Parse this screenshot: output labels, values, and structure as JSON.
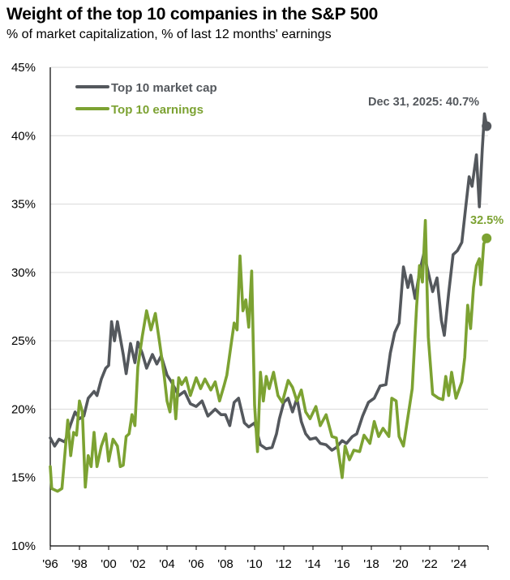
{
  "chart_data": {
    "type": "line",
    "title": "Weight of the top 10 companies in the S&P 500",
    "subtitle": "% of market capitalization, % of last 12 months' earnings",
    "xlabel": "",
    "ylabel": "",
    "xlim": [
      1996,
      2026
    ],
    "ylim": [
      10,
      45
    ],
    "grid": true,
    "legend_position": "top-left",
    "x_ticks": [
      {
        "value": 1996,
        "label": "'96"
      },
      {
        "value": 1998,
        "label": "'98"
      },
      {
        "value": 2000,
        "label": "'00"
      },
      {
        "value": 2002,
        "label": "'02"
      },
      {
        "value": 2004,
        "label": "'04"
      },
      {
        "value": 2006,
        "label": "'06"
      },
      {
        "value": 2008,
        "label": "'08"
      },
      {
        "value": 2010,
        "label": "'10"
      },
      {
        "value": 2012,
        "label": "'12"
      },
      {
        "value": 2014,
        "label": "'14"
      },
      {
        "value": 2016,
        "label": "'16"
      },
      {
        "value": 2018,
        "label": "'18"
      },
      {
        "value": 2020,
        "label": "'20"
      },
      {
        "value": 2022,
        "label": "'22"
      },
      {
        "value": 2024,
        "label": "'24"
      },
      {
        "value": 2026,
        "label": ""
      }
    ],
    "y_ticks": [
      {
        "value": 10,
        "label": "10%"
      },
      {
        "value": 15,
        "label": "15%"
      },
      {
        "value": 20,
        "label": "20%"
      },
      {
        "value": 25,
        "label": "25%"
      },
      {
        "value": 30,
        "label": "30%"
      },
      {
        "value": 35,
        "label": "35%"
      },
      {
        "value": 40,
        "label": "40%"
      },
      {
        "value": 45,
        "label": "45%"
      }
    ],
    "series": [
      {
        "name": "Top 10 market cap",
        "color": "#54585d",
        "end_label": "Dec 31, 2025: 40.7%",
        "end_value": 40.7,
        "points": [
          [
            1996.0,
            17.9
          ],
          [
            1996.3,
            17.3
          ],
          [
            1996.6,
            17.8
          ],
          [
            1997.0,
            17.6
          ],
          [
            1997.4,
            18.9
          ],
          [
            1997.7,
            19.8
          ],
          [
            1998.0,
            19.3
          ],
          [
            1998.3,
            19.5
          ],
          [
            1998.6,
            20.8
          ],
          [
            1999.0,
            21.3
          ],
          [
            1999.2,
            21.0
          ],
          [
            1999.5,
            22.2
          ],
          [
            1999.8,
            23.0
          ],
          [
            2000.0,
            23.2
          ],
          [
            2000.2,
            26.4
          ],
          [
            2000.4,
            25.0
          ],
          [
            2000.6,
            26.4
          ],
          [
            2000.8,
            25.2
          ],
          [
            2001.0,
            24.0
          ],
          [
            2001.2,
            22.6
          ],
          [
            2001.5,
            24.8
          ],
          [
            2001.8,
            23.4
          ],
          [
            2002.0,
            24.9
          ],
          [
            2002.3,
            24.1
          ],
          [
            2002.6,
            23.0
          ],
          [
            2003.0,
            24.0
          ],
          [
            2003.3,
            23.3
          ],
          [
            2003.6,
            23.9
          ],
          [
            2004.0,
            22.5
          ],
          [
            2004.3,
            22.0
          ],
          [
            2004.8,
            21.0
          ],
          [
            2005.2,
            21.3
          ],
          [
            2005.6,
            20.4
          ],
          [
            2006.0,
            20.2
          ],
          [
            2006.4,
            20.6
          ],
          [
            2006.8,
            19.5
          ],
          [
            2007.3,
            20.0
          ],
          [
            2007.7,
            19.6
          ],
          [
            2008.0,
            19.6
          ],
          [
            2008.3,
            18.8
          ],
          [
            2008.6,
            20.5
          ],
          [
            2008.9,
            20.8
          ],
          [
            2009.3,
            19.0
          ],
          [
            2009.6,
            18.7
          ],
          [
            2010.0,
            19.0
          ],
          [
            2010.4,
            17.4
          ],
          [
            2010.8,
            17.1
          ],
          [
            2011.2,
            17.2
          ],
          [
            2011.5,
            18.2
          ],
          [
            2011.7,
            19.3
          ],
          [
            2012.0,
            20.5
          ],
          [
            2012.3,
            20.8
          ],
          [
            2012.6,
            19.8
          ],
          [
            2012.9,
            20.8
          ],
          [
            2013.2,
            19.1
          ],
          [
            2013.5,
            18.2
          ],
          [
            2013.8,
            17.8
          ],
          [
            2014.2,
            17.9
          ],
          [
            2014.5,
            17.5
          ],
          [
            2014.9,
            17.4
          ],
          [
            2015.3,
            17.0
          ],
          [
            2015.6,
            17.2
          ],
          [
            2016.0,
            17.7
          ],
          [
            2016.3,
            17.5
          ],
          [
            2016.7,
            18.0
          ],
          [
            2017.0,
            18.2
          ],
          [
            2017.4,
            19.5
          ],
          [
            2017.8,
            20.5
          ],
          [
            2018.2,
            20.8
          ],
          [
            2018.6,
            21.7
          ],
          [
            2019.0,
            21.8
          ],
          [
            2019.3,
            24.1
          ],
          [
            2019.6,
            25.6
          ],
          [
            2019.9,
            26.3
          ],
          [
            2020.2,
            30.4
          ],
          [
            2020.5,
            28.9
          ],
          [
            2020.7,
            29.8
          ],
          [
            2021.0,
            28.1
          ],
          [
            2021.3,
            30.0
          ],
          [
            2021.6,
            31.4
          ],
          [
            2021.9,
            30.0
          ],
          [
            2022.2,
            28.6
          ],
          [
            2022.5,
            29.6
          ],
          [
            2022.8,
            26.5
          ],
          [
            2023.0,
            25.4
          ],
          [
            2023.3,
            28.5
          ],
          [
            2023.6,
            31.3
          ],
          [
            2023.9,
            31.6
          ],
          [
            2024.2,
            32.2
          ],
          [
            2024.5,
            35.1
          ],
          [
            2024.7,
            37.0
          ],
          [
            2024.9,
            36.3
          ],
          [
            2025.2,
            38.6
          ],
          [
            2025.4,
            34.8
          ],
          [
            2025.6,
            39.0
          ],
          [
            2025.75,
            41.6
          ],
          [
            2025.9,
            40.7
          ]
        ]
      },
      {
        "name": "Top 10 earnings",
        "color": "#7ca232",
        "end_label": "32.5%",
        "end_value": 32.5,
        "points": [
          [
            1996.0,
            15.8
          ],
          [
            1996.1,
            14.2
          ],
          [
            1996.5,
            14.0
          ],
          [
            1996.8,
            14.2
          ],
          [
            1997.0,
            16.7
          ],
          [
            1997.2,
            19.2
          ],
          [
            1997.4,
            16.6
          ],
          [
            1997.6,
            18.3
          ],
          [
            1997.8,
            18.1
          ],
          [
            1998.0,
            20.6
          ],
          [
            1998.2,
            19.8
          ],
          [
            1998.4,
            14.3
          ],
          [
            1998.6,
            16.6
          ],
          [
            1998.8,
            15.8
          ],
          [
            1999.0,
            18.3
          ],
          [
            1999.2,
            15.8
          ],
          [
            1999.5,
            17.3
          ],
          [
            1999.8,
            18.2
          ],
          [
            2000.0,
            16.2
          ],
          [
            2000.3,
            17.8
          ],
          [
            2000.6,
            17.3
          ],
          [
            2000.8,
            15.8
          ],
          [
            2001.0,
            15.9
          ],
          [
            2001.2,
            18.0
          ],
          [
            2001.4,
            18.2
          ],
          [
            2001.6,
            19.6
          ],
          [
            2001.8,
            18.8
          ],
          [
            2002.0,
            23.1
          ],
          [
            2002.3,
            25.3
          ],
          [
            2002.6,
            27.2
          ],
          [
            2002.9,
            25.8
          ],
          [
            2003.2,
            27.0
          ],
          [
            2003.5,
            24.8
          ],
          [
            2003.8,
            22.5
          ],
          [
            2004.0,
            20.6
          ],
          [
            2004.2,
            19.8
          ],
          [
            2004.4,
            22.1
          ],
          [
            2004.6,
            19.3
          ],
          [
            2004.8,
            22.3
          ],
          [
            2005.0,
            21.8
          ],
          [
            2005.3,
            22.3
          ],
          [
            2005.6,
            21.0
          ],
          [
            2006.0,
            22.3
          ],
          [
            2006.3,
            21.5
          ],
          [
            2006.6,
            22.2
          ],
          [
            2007.0,
            21.4
          ],
          [
            2007.3,
            22.0
          ],
          [
            2007.6,
            20.6
          ],
          [
            2007.9,
            21.7
          ],
          [
            2008.1,
            22.5
          ],
          [
            2008.4,
            24.8
          ],
          [
            2008.6,
            26.3
          ],
          [
            2008.8,
            25.8
          ],
          [
            2009.0,
            31.2
          ],
          [
            2009.2,
            27.2
          ],
          [
            2009.4,
            28.0
          ],
          [
            2009.6,
            26.0
          ],
          [
            2009.8,
            30.1
          ],
          [
            2010.0,
            20.3
          ],
          [
            2010.2,
            16.9
          ],
          [
            2010.4,
            22.7
          ],
          [
            2010.6,
            20.6
          ],
          [
            2010.8,
            22.4
          ],
          [
            2011.0,
            21.5
          ],
          [
            2011.3,
            22.7
          ],
          [
            2011.6,
            21.0
          ],
          [
            2011.9,
            20.5
          ],
          [
            2012.3,
            22.1
          ],
          [
            2012.6,
            21.6
          ],
          [
            2012.9,
            20.6
          ],
          [
            2013.2,
            21.4
          ],
          [
            2013.5,
            19.8
          ],
          [
            2013.8,
            19.3
          ],
          [
            2014.2,
            20.2
          ],
          [
            2014.5,
            18.8
          ],
          [
            2014.9,
            19.6
          ],
          [
            2015.3,
            18.0
          ],
          [
            2015.6,
            17.9
          ],
          [
            2016.0,
            15.0
          ],
          [
            2016.2,
            17.3
          ],
          [
            2016.5,
            16.3
          ],
          [
            2016.8,
            17.0
          ],
          [
            2017.2,
            16.9
          ],
          [
            2017.5,
            18.1
          ],
          [
            2017.9,
            17.5
          ],
          [
            2018.2,
            19.1
          ],
          [
            2018.5,
            18.0
          ],
          [
            2018.8,
            18.6
          ],
          [
            2019.2,
            18.0
          ],
          [
            2019.4,
            20.8
          ],
          [
            2019.7,
            20.6
          ],
          [
            2019.9,
            18.0
          ],
          [
            2020.2,
            17.3
          ],
          [
            2020.5,
            19.4
          ],
          [
            2020.8,
            21.5
          ],
          [
            2021.1,
            27.5
          ],
          [
            2021.3,
            30.5
          ],
          [
            2021.5,
            29.3
          ],
          [
            2021.7,
            33.8
          ],
          [
            2021.9,
            25.3
          ],
          [
            2022.2,
            21.1
          ],
          [
            2022.6,
            20.8
          ],
          [
            2022.9,
            20.7
          ],
          [
            2023.1,
            22.4
          ],
          [
            2023.3,
            21.0
          ],
          [
            2023.5,
            22.7
          ],
          [
            2023.8,
            20.8
          ],
          [
            2024.2,
            22.0
          ],
          [
            2024.4,
            23.8
          ],
          [
            2024.6,
            27.6
          ],
          [
            2024.8,
            25.9
          ],
          [
            2025.0,
            28.9
          ],
          [
            2025.2,
            30.5
          ],
          [
            2025.4,
            31.0
          ],
          [
            2025.5,
            29.1
          ],
          [
            2025.7,
            32.1
          ],
          [
            2025.9,
            32.5
          ]
        ]
      }
    ]
  }
}
